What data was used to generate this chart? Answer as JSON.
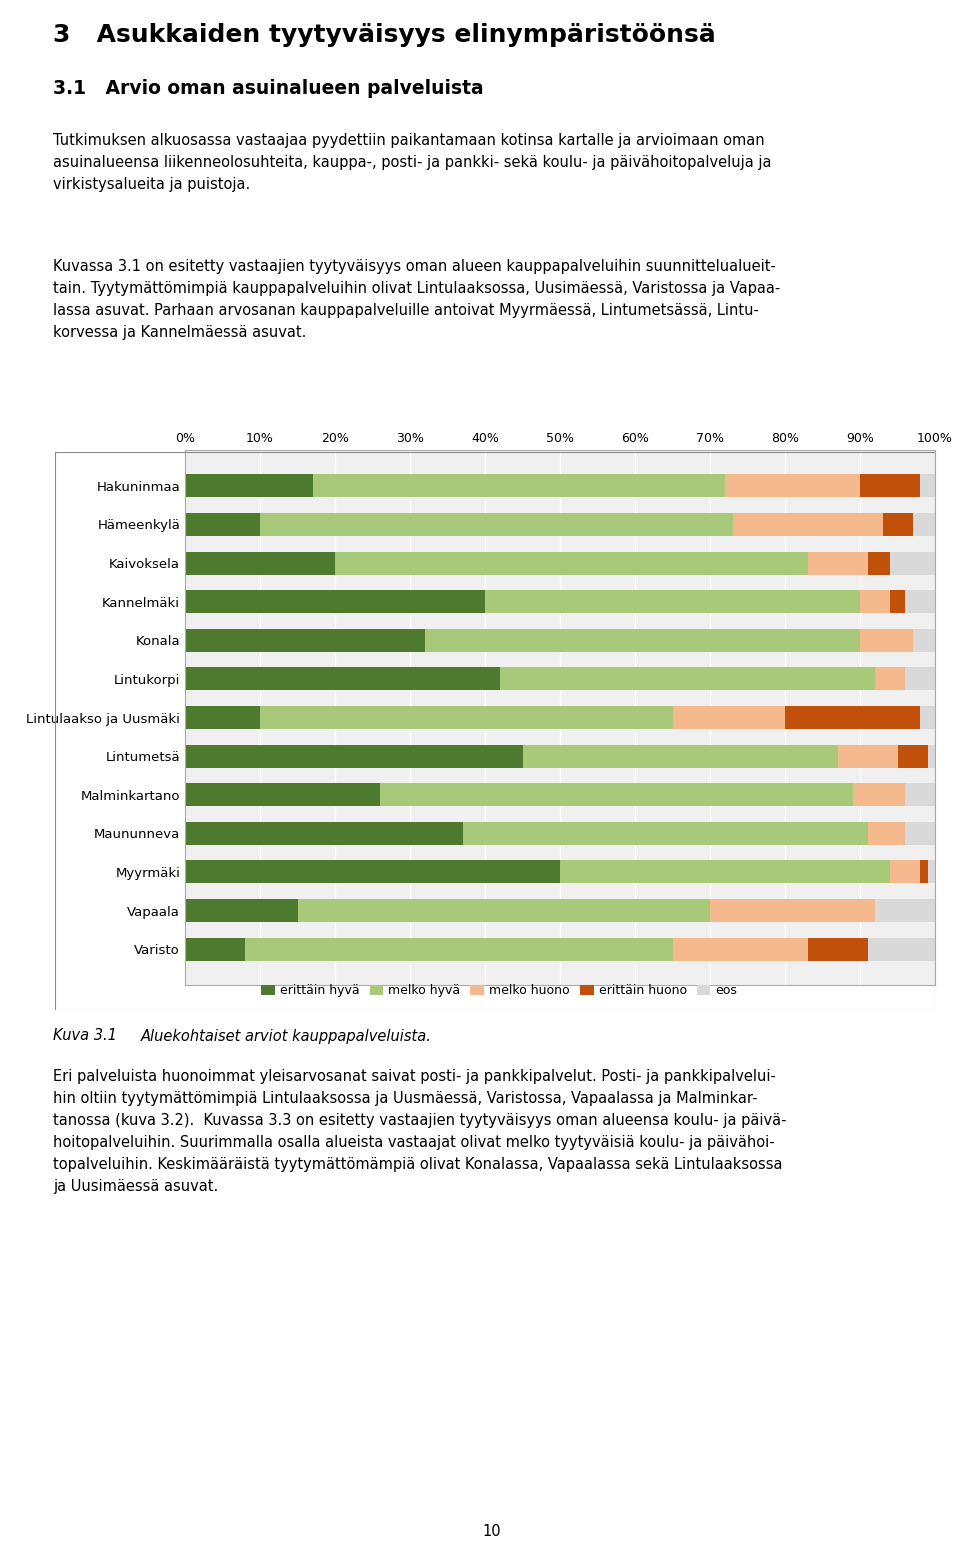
{
  "categories": [
    "Hakuninmaa",
    "Hämeenkylä",
    "Kaivoksela",
    "Kannelmäki",
    "Konala",
    "Lintukorpi",
    "Lintulaakso ja Uusmäki",
    "Lintumetsä",
    "Malminkartano",
    "Maununneva",
    "Myyrmäki",
    "Vapaala",
    "Varisto"
  ],
  "series": {
    "erittäin hyvä": [
      17,
      10,
      20,
      40,
      32,
      42,
      10,
      45,
      26,
      37,
      50,
      15,
      8
    ],
    "melko hyvä": [
      55,
      63,
      63,
      50,
      58,
      50,
      55,
      42,
      63,
      54,
      44,
      55,
      57
    ],
    "melko huono": [
      18,
      20,
      8,
      4,
      7,
      4,
      15,
      8,
      7,
      5,
      4,
      22,
      18
    ],
    "erittäin huono": [
      8,
      4,
      3,
      2,
      0,
      0,
      18,
      4,
      0,
      0,
      1,
      0,
      8
    ],
    "eos": [
      2,
      3,
      6,
      4,
      3,
      4,
      2,
      1,
      4,
      4,
      1,
      8,
      9
    ]
  },
  "colors": {
    "erittäin hyvä": "#4d7a2e",
    "melko hyvä": "#a8c87a",
    "melko huono": "#f5b98e",
    "erittäin huono": "#c0500a",
    "eos": "#d9d9d9"
  },
  "legend_labels": [
    "erittäin hyvä",
    "melko hyvä",
    "melko huono",
    "erittäin huono",
    "eos"
  ],
  "heading1": "3   Asukkaiden tyytyväisyys elinympäristöönsä",
  "heading2": "3.1   Arvio oman asuinalueen palveluista",
  "body_text1_lines": [
    "Tutkimuksen alkuosassa vastaajaa pyydettiin paikantamaan kotinsa kartalle ja arvioimaan oman",
    "asuinalueensa liikenneolosuhteita, kauppa-, posti- ja pankki- sekä koulu- ja päivähoitopalveluja ja",
    "virkistysalueita ja puistoja."
  ],
  "body_text2_lines": [
    "Kuvassa 3.1 on esitetty vastaajien tyytyväisyys oman alueen kauppapalveluihin suunnittelualueit-",
    "tain. Tyytymättömimpiä kauppapalveluihin olivat Lintulaaksossa, Uusimäessä, Varistossa ja Vapaa-",
    "lassa asuvat. Parhaan arvosanan kauppapalveluille antoivat Myyrmäessä, Lintumetsässä, Lintu-",
    "korvessa ja Kannelmäessä asuvat."
  ],
  "caption_label": "Kuva 3.1",
  "caption_text": "Aluekohtaiset arviot kauppapalveluista.",
  "body_text3_lines": [
    "Eri palveluista huonoimmat yleisarvosanat saivat posti- ja pankkipalvelut. Posti- ja pankkipalvelui-",
    "hin oltiin tyytymättömimpiä Lintulaaksossa ja Uusmäessä, Varistossa, Vapaalassa ja Malminkar-",
    "tanossa (kuva 3.2).  Kuvassa 3.3 on esitetty vastaajien tyytyväisyys oman alueensa koulu- ja päivä-",
    "hoitopalveluihin. Suurimmalla osalla alueista vastaajat olivat melko tyytyväisiä koulu- ja päivähoi-",
    "topalveluihin. Keskimääräistä tyytymättömämpiä olivat Konalassa, Vapaalassa sekä Lintulaaksossa",
    "ja Uusimäessä asuvat."
  ],
  "page_number": "10",
  "xlim": [
    0,
    100
  ],
  "xticks": [
    0,
    10,
    20,
    30,
    40,
    50,
    60,
    70,
    80,
    90,
    100
  ],
  "bar_height": 0.6,
  "chart_bg": "#f0f0f0",
  "grid_color": "#ffffff",
  "box_color": "#aaaaaa"
}
